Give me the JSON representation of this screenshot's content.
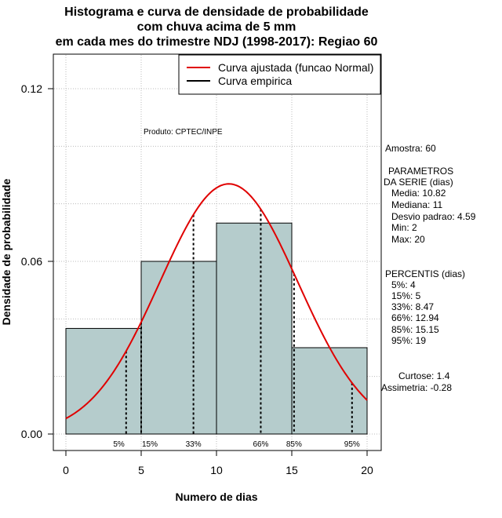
{
  "chart_data": {
    "type": "bar",
    "title_lines": [
      "Histograma e curva de densidade de probabilidade",
      "com chuva acima de 5 mm",
      "em cada mes do trimestre NDJ (1998-2017): Regiao 60"
    ],
    "xlabel": "Numero de dias",
    "ylabel": "Densidade de probabilidade",
    "xlim": [
      0,
      20
    ],
    "ylim": [
      0,
      0.12
    ],
    "x_ticks": [
      0,
      5,
      10,
      15,
      20
    ],
    "y_ticks": [
      0.0,
      0.06,
      0.12
    ],
    "y_tick_labels": [
      "0.00",
      "0.06",
      "0.12"
    ],
    "grid": true,
    "bins": [
      {
        "from": 0,
        "to": 5,
        "density": 0.0367
      },
      {
        "from": 5,
        "to": 10,
        "density": 0.06
      },
      {
        "from": 10,
        "to": 15,
        "density": 0.0733
      },
      {
        "from": 15,
        "to": 20,
        "density": 0.03
      }
    ],
    "bar_color": "#b5cccc",
    "normal_curve": {
      "mean": 10.82,
      "sd": 4.59,
      "color": "#e00000"
    },
    "legend": {
      "position": "top-right",
      "entries": [
        {
          "label": "Curva ajustada (funcao Normal)",
          "color": "#e00000"
        },
        {
          "label": "Curva empirica",
          "color": "#000000"
        }
      ]
    },
    "percentile_lines": [
      {
        "label": "5%",
        "x": 4
      },
      {
        "label": "15%",
        "x": 5
      },
      {
        "label": "33%",
        "x": 8.47
      },
      {
        "label": "66%",
        "x": 12.94
      },
      {
        "label": "85%",
        "x": 15.15
      },
      {
        "label": "95%",
        "x": 19
      }
    ],
    "annotations": {
      "produto": "Produto: CPTEC/INPE",
      "amostra": "Amostra: 60",
      "parametros_lines": [
        "PARAMETROS",
        "DA SERIE (dias)",
        "Media: 10.82",
        "Mediana: 11",
        "Desvio padrao: 4.59",
        "Min: 2",
        "Max: 20"
      ],
      "percentis_lines": [
        "PERCENTIS (dias)",
        "5%: 4",
        "15%: 5",
        "33%: 8.47",
        "66%: 12.94",
        "85%: 15.15",
        "95%: 19"
      ],
      "curtose": "Curtose: 1.4",
      "assimetria": "Assimetria: -0.28"
    }
  }
}
